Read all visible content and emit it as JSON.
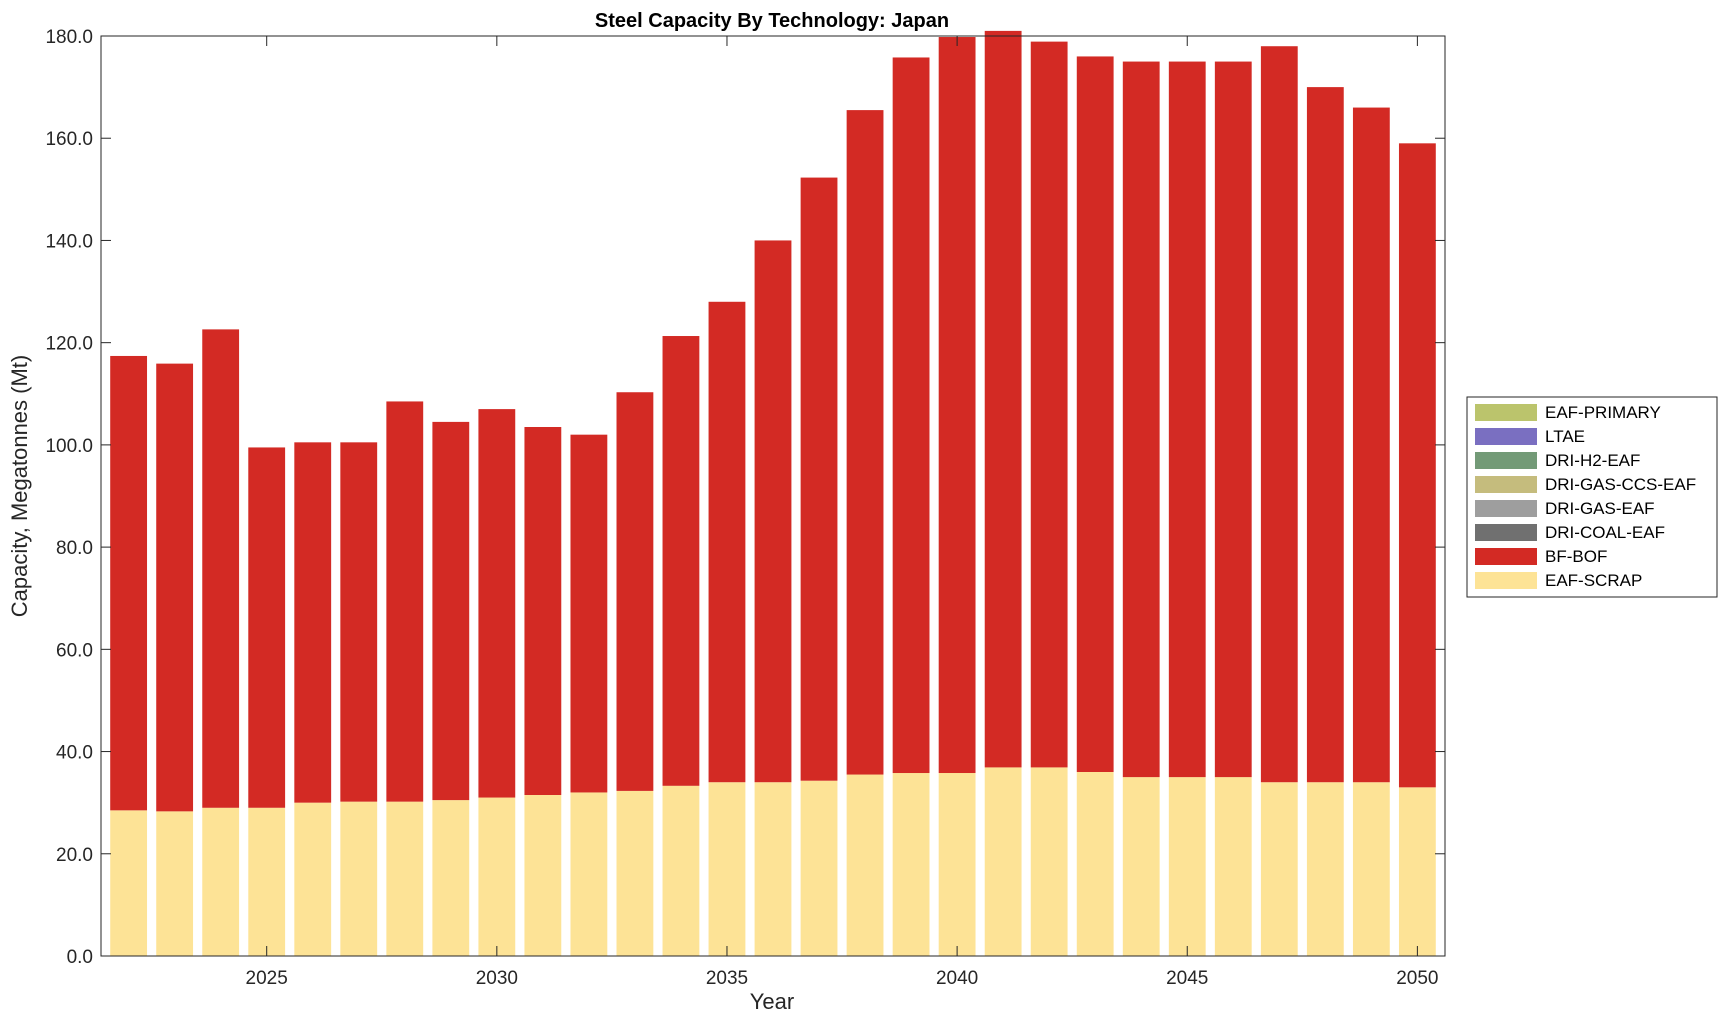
{
  "chart_data": {
    "type": "bar",
    "stacked": true,
    "title": "Steel Capacity By Technology: Japan",
    "xlabel": "Year",
    "ylabel": "Capacity, Megatonnes (Mt)",
    "ylim": [
      0,
      180
    ],
    "xlim": [
      2021.4,
      2050.6
    ],
    "yticks": [
      "0.0",
      "20.0",
      "40.0",
      "60.0",
      "80.0",
      "100.0",
      "120.0",
      "140.0",
      "160.0",
      "180.0"
    ],
    "xticks": [
      "2025",
      "2030",
      "2035",
      "2040",
      "2045",
      "2050"
    ],
    "grid": false,
    "legend_position": "right",
    "x": [
      2022,
      2023,
      2024,
      2025,
      2026,
      2027,
      2028,
      2029,
      2030,
      2031,
      2032,
      2033,
      2034,
      2035,
      2036,
      2037,
      2038,
      2039,
      2040,
      2041,
      2042,
      2043,
      2044,
      2045,
      2046,
      2047,
      2048,
      2049,
      2050
    ],
    "series": [
      {
        "name": "EAF-SCRAP",
        "color": "#FDE396",
        "values": [
          28.5,
          28.3,
          29.0,
          29.0,
          30.0,
          30.2,
          30.2,
          30.5,
          31.0,
          31.5,
          32.0,
          32.3,
          33.3,
          34.0,
          34.0,
          34.3,
          35.5,
          35.8,
          35.8,
          36.9,
          36.9,
          36.0,
          35.0,
          35.0,
          35.0,
          34.0,
          34.0,
          34.0,
          33.0
        ]
      },
      {
        "name": "BF-BOF",
        "color": "#D32A24",
        "values": [
          88.9,
          87.6,
          93.6,
          70.5,
          70.5,
          70.3,
          78.3,
          74.0,
          76.0,
          72.0,
          70.0,
          78.0,
          88.0,
          94.0,
          106.0,
          118.0,
          130.0,
          140.0,
          144.0,
          144.1,
          142.0,
          140.0,
          140.0,
          140.0,
          140.0,
          144.0,
          136.0,
          132.0,
          126.0
        ]
      },
      {
        "name": "DRI-COAL-EAF",
        "color": "#707070",
        "values": [
          0,
          0,
          0,
          0,
          0,
          0,
          0,
          0,
          0,
          0,
          0,
          0,
          0,
          0,
          0,
          0,
          0,
          0,
          0,
          0,
          0,
          0,
          0,
          0,
          0,
          0,
          0,
          0,
          0
        ]
      },
      {
        "name": "DRI-GAS-EAF",
        "color": "#9E9E9E",
        "values": [
          0,
          0,
          0,
          0,
          0,
          0,
          0,
          0,
          0,
          0,
          0,
          0,
          0,
          0,
          0,
          0,
          0,
          0,
          0,
          0,
          0,
          0,
          0,
          0,
          0,
          0,
          0,
          0,
          0
        ]
      },
      {
        "name": "DRI-GAS-CCS-EAF",
        "color": "#C5BC7D",
        "values": [
          0,
          0,
          0,
          0,
          0,
          0,
          0,
          0,
          0,
          0,
          0,
          0,
          0,
          0,
          0,
          0,
          0,
          0,
          0,
          0,
          0,
          0,
          0,
          0,
          0,
          0,
          0,
          0,
          0
        ]
      },
      {
        "name": "DRI-H2-EAF",
        "color": "#739A77",
        "values": [
          0,
          0,
          0,
          0,
          0,
          0,
          0,
          0,
          0,
          0,
          0,
          0,
          0,
          0,
          0,
          0,
          0,
          0,
          0,
          0,
          0,
          0,
          0,
          0,
          0,
          0,
          0,
          0,
          0
        ]
      },
      {
        "name": "LTAE",
        "color": "#7A6FC1",
        "values": [
          0,
          0,
          0,
          0,
          0,
          0,
          0,
          0,
          0,
          0,
          0,
          0,
          0,
          0,
          0,
          0,
          0,
          0,
          0,
          0,
          0,
          0,
          0,
          0,
          0,
          0,
          0,
          0,
          0
        ]
      },
      {
        "name": "EAF-PRIMARY",
        "color": "#BBC46C",
        "values": [
          0,
          0,
          0,
          0,
          0,
          0,
          0,
          0,
          0,
          0,
          0,
          0,
          0,
          0,
          0,
          0,
          0,
          0,
          0,
          0,
          0,
          0,
          0,
          0,
          0,
          0,
          0,
          0,
          0
        ]
      }
    ],
    "legend_order": [
      "EAF-PRIMARY",
      "LTAE",
      "DRI-H2-EAF",
      "DRI-GAS-CCS-EAF",
      "DRI-GAS-EAF",
      "DRI-COAL-EAF",
      "BF-BOF",
      "EAF-SCRAP"
    ]
  }
}
